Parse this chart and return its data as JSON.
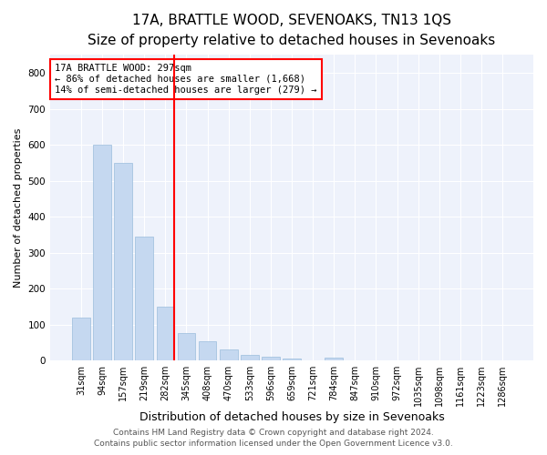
{
  "title": "17A, BRATTLE WOOD, SEVENOAKS, TN13 1QS",
  "subtitle": "Size of property relative to detached houses in Sevenoaks",
  "xlabel": "Distribution of detached houses by size in Sevenoaks",
  "ylabel": "Number of detached properties",
  "bar_labels": [
    "31sqm",
    "94sqm",
    "157sqm",
    "219sqm",
    "282sqm",
    "345sqm",
    "408sqm",
    "470sqm",
    "533sqm",
    "596sqm",
    "659sqm",
    "721sqm",
    "784sqm",
    "847sqm",
    "910sqm",
    "972sqm",
    "1035sqm",
    "1098sqm",
    "1161sqm",
    "1223sqm",
    "1286sqm"
  ],
  "bar_values": [
    120,
    600,
    550,
    345,
    150,
    75,
    53,
    30,
    15,
    10,
    5,
    0,
    7,
    0,
    0,
    0,
    0,
    0,
    0,
    0,
    0
  ],
  "bar_color": "#c5d8f0",
  "bar_edge_color": "#9bbcdc",
  "red_line_index": 4,
  "annotation_text": "17A BRATTLE WOOD: 297sqm\n← 86% of detached houses are smaller (1,668)\n14% of semi-detached houses are larger (279) →",
  "annotation_box_color": "white",
  "annotation_box_edge_color": "red",
  "ylim": [
    0,
    850
  ],
  "yticks": [
    0,
    100,
    200,
    300,
    400,
    500,
    600,
    700,
    800
  ],
  "plot_bg_color": "#eef2fb",
  "grid_color": "white",
  "footer_line1": "Contains HM Land Registry data © Crown copyright and database right 2024.",
  "footer_line2": "Contains public sector information licensed under the Open Government Licence v3.0.",
  "title_fontsize": 11,
  "subtitle_fontsize": 9,
  "xlabel_fontsize": 9,
  "ylabel_fontsize": 8,
  "tick_fontsize": 7,
  "annotation_fontsize": 7.5,
  "footer_fontsize": 6.5
}
